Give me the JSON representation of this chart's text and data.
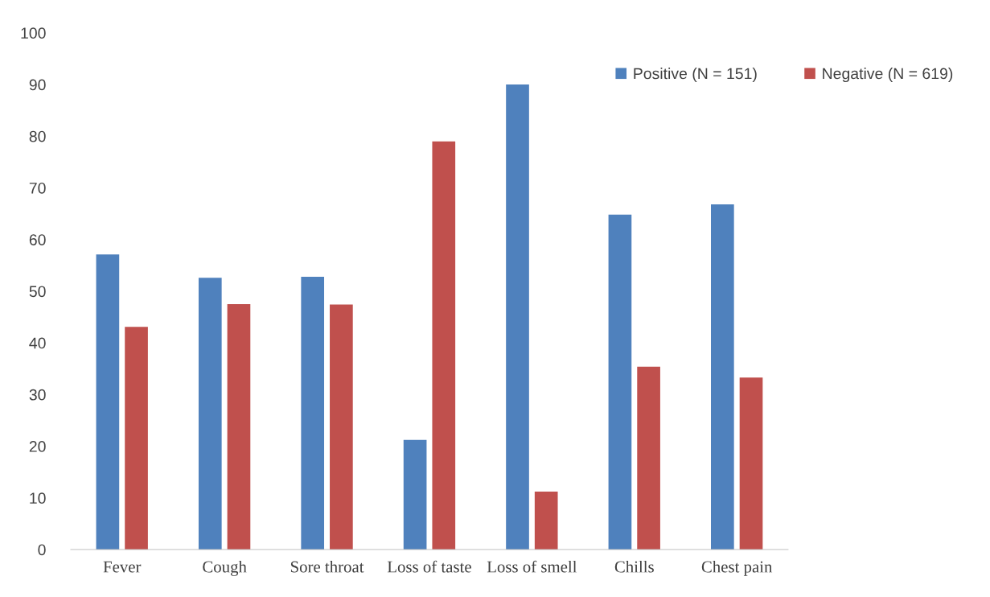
{
  "chart_data": {
    "type": "bar",
    "categories": [
      "Fever",
      "Cough",
      "Sore throat",
      "Loss of taste",
      "Loss of smell",
      "Chills",
      "Chest pain"
    ],
    "series": [
      {
        "name": "Positive (N = 151)",
        "color": "#4f81bd",
        "values": [
          57.1,
          52.6,
          52.8,
          21.2,
          90.0,
          64.8,
          66.8
        ]
      },
      {
        "name": "Negative (N = 619)",
        "color": "#c0504d",
        "values": [
          43.1,
          47.5,
          47.4,
          79.0,
          11.2,
          35.4,
          33.3
        ]
      }
    ],
    "ylim": [
      0,
      100
    ],
    "yticks": [
      0,
      10,
      20,
      30,
      40,
      50,
      60,
      70,
      80,
      90,
      100
    ],
    "grid": false,
    "legend": "top right"
  }
}
